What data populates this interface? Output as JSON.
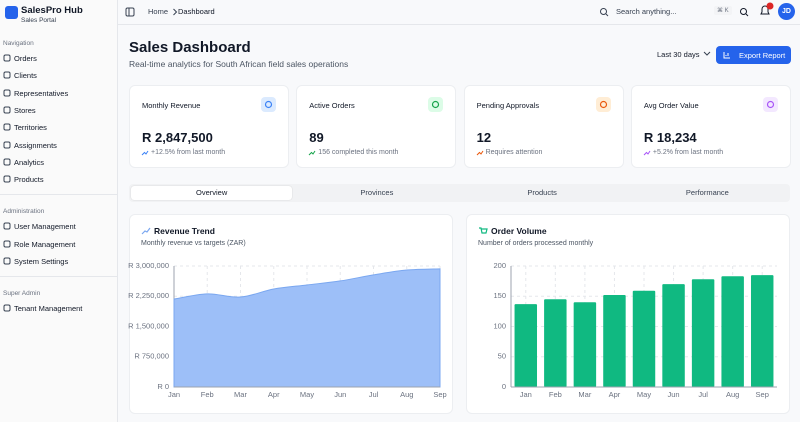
{
  "sidebar": {
    "brand": "SalesPro Hub",
    "tagline": "Sales Portal",
    "sections": [
      {
        "title": "Navigation",
        "items": [
          "Orders",
          "Clients",
          "Representatives",
          "Stores",
          "Territories",
          "Assignments",
          "Analytics",
          "Products"
        ]
      },
      {
        "title": "Administration",
        "items": [
          "User Management",
          "Role Management",
          "System Settings"
        ]
      },
      {
        "title": "Super Admin",
        "items": [
          "Tenant Management"
        ]
      }
    ]
  },
  "header": {
    "breadcrumb": [
      "Home",
      "Dashboard"
    ],
    "search": "Search anything...",
    "shortcut": "⌘ K",
    "avatar": "JD"
  },
  "page": {
    "title": "Sales Dashboard",
    "subtitle": "Real-time analytics for South African field sales operations",
    "range": "Last 30 days",
    "export": "Export Report"
  },
  "kpis": [
    {
      "title": "Monthly Revenue",
      "value": "R 2,847,500",
      "note": "+12.5% from last month",
      "color": "#3b82f6",
      "bg": "#dbeafe",
      "ncolor": "#6b7280"
    },
    {
      "title": "Active Orders",
      "value": "89",
      "note": "156 completed this month",
      "color": "#16a34a",
      "bg": "#dcfce7",
      "ncolor": "#6b7280"
    },
    {
      "title": "Pending Approvals",
      "value": "12",
      "note": "Requires attention",
      "color": "#ea580c",
      "bg": "#ffedd5",
      "ncolor": "#6b7280"
    },
    {
      "title": "Avg Order Value",
      "value": "R 18,234",
      "note": "+5.2% from last month",
      "color": "#a855f7",
      "bg": "#f3e8ff",
      "ncolor": "#6b7280"
    }
  ],
  "tabs": [
    "Overview",
    "Provinces",
    "Products",
    "Performance"
  ],
  "chart_data": [
    {
      "type": "area",
      "title": "Revenue Trend",
      "subtitle": "Monthly revenue vs targets (ZAR)",
      "categories": [
        "Jan",
        "Feb",
        "Mar",
        "Apr",
        "May",
        "Jun",
        "Jul",
        "Aug",
        "Sep"
      ],
      "values": [
        2180000,
        2310000,
        2230000,
        2430000,
        2530000,
        2630000,
        2780000,
        2900000,
        2930000
      ],
      "color": "#9dbff8",
      "stroke": "#7aa7f0",
      "ylim": [
        0,
        3000000
      ],
      "yticks": [
        {
          "value": 0,
          "label": "R 0"
        },
        {
          "value": 750000,
          "label": "R 750,000"
        },
        {
          "value": 1500000,
          "label": "R 1,500,000"
        },
        {
          "value": 2250000,
          "label": "R 2,250,000"
        },
        {
          "value": 3000000,
          "label": "R 3,000,000"
        }
      ],
      "grid": true
    },
    {
      "type": "bar",
      "title": "Order Volume",
      "subtitle": "Number of orders processed monthly",
      "categories": [
        "Jan",
        "Feb",
        "Mar",
        "Apr",
        "May",
        "Jun",
        "Jul",
        "Aug",
        "Sep"
      ],
      "values": [
        137,
        145,
        140,
        152,
        159,
        170,
        178,
        183,
        185
      ],
      "color": "#10b981",
      "ylim": [
        0,
        200
      ],
      "yticks": [
        0,
        50,
        100,
        150,
        200
      ],
      "grid": true
    }
  ]
}
